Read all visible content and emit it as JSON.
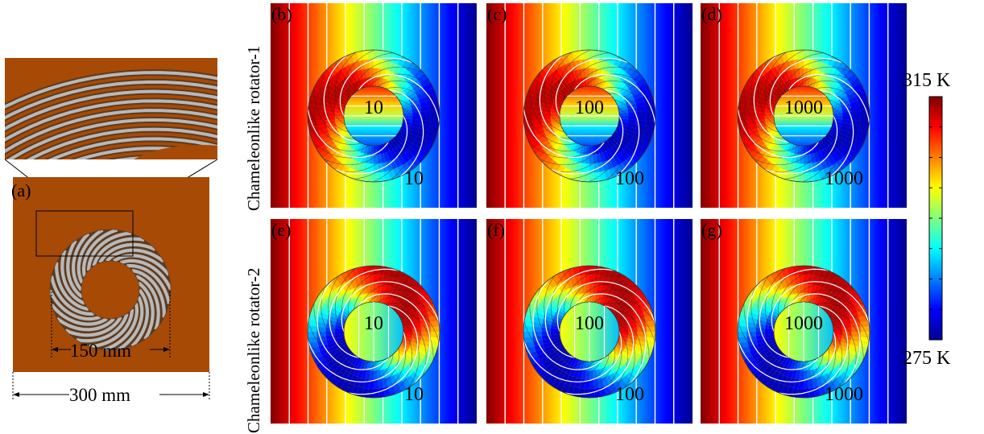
{
  "panel_a": {
    "label": "(a)",
    "inner_dim": "150 mm",
    "outer_dim": "300 mm",
    "colors": {
      "host": "#a64a05",
      "layer_light": "#b8b8b8",
      "layer_dark": "#5e3a1e"
    }
  },
  "row_labels": [
    "Chameleonlike rotator-1",
    "Chameleonlike rotator-2"
  ],
  "panels": [
    {
      "label": "(b)",
      "inner_value": "10",
      "outer_value": "10",
      "rotator": 1
    },
    {
      "label": "(c)",
      "inner_value": "100",
      "outer_value": "100",
      "rotator": 1
    },
    {
      "label": "(d)",
      "inner_value": "1000",
      "outer_value": "1000",
      "rotator": 1
    },
    {
      "label": "(e)",
      "inner_value": "10",
      "outer_value": "10",
      "rotator": 2
    },
    {
      "label": "(f)",
      "inner_value": "100",
      "outer_value": "100",
      "rotator": 2
    },
    {
      "label": "(g)",
      "inner_value": "1000",
      "outer_value": "1000",
      "rotator": 2
    }
  ],
  "colorbar": {
    "max_label": "315 K",
    "min_label": "275 K",
    "colormap": "jet"
  }
}
